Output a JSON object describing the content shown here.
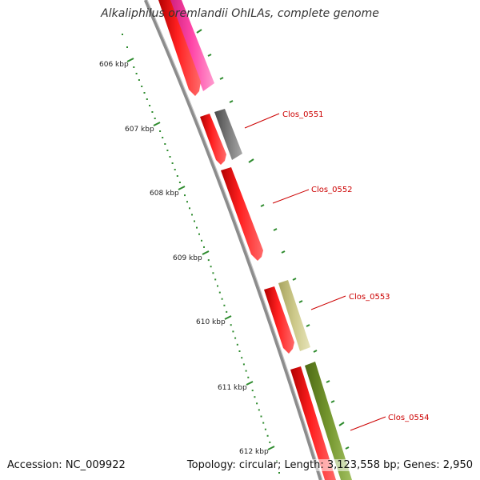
{
  "title": "Alkaliphilus oremlandii OhILAs, complete genome",
  "accession_text": "Accession: NC_009922",
  "summary_text": "Topology: circular; Length: 3,123,558 bp; Genes: 2,950",
  "colors": {
    "backbone": "#8c8c8c",
    "tick": "#2e8b2e",
    "cds_forward": "#ff1a1a",
    "label": "#cc0000",
    "magenta": "#ff3fa0",
    "dark_gray": "#6b6b6b",
    "khaki": "#c8c482",
    "olive": "#6f8f2a"
  },
  "kbp_labels": [
    "606 kbp",
    "607 kbp",
    "608 kbp",
    "609 kbp",
    "610 kbp",
    "611 kbp",
    "612 kbp"
  ],
  "gene_labels": [
    "Clos_0551",
    "Clos_0552",
    "Clos_0553",
    "Clos_0554"
  ]
}
